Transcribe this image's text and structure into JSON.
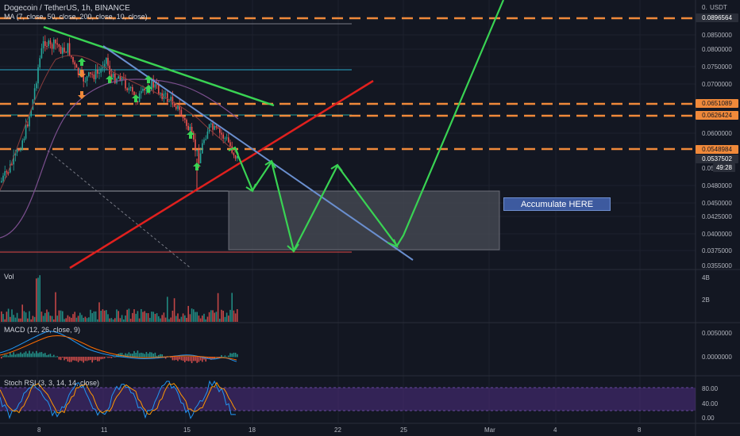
{
  "header": {
    "symbol": "Dogecoin / TetherUS, 1h, BINANCE",
    "ma_indicator": "MA (7, close, 50, close, 200, close, 10, close)"
  },
  "currency": "USDT",
  "price_axis": {
    "labels": [
      "0.0850000",
      "0.0800000",
      "0.0750000",
      "0.0700000",
      "0.0600000",
      "0.0480000",
      "0.0450000",
      "0.0425000",
      "0.0400000",
      "0.0375000",
      "0.0355000"
    ],
    "partial_labels": [
      "0.",
      "0.05"
    ]
  },
  "price_tags": {
    "top": "0.0896564",
    "level_1": "0.0651089",
    "level_2": "0.0626424",
    "level_3": "0.0548984",
    "last_price": "0.0537502",
    "countdown": "49:28"
  },
  "colors": {
    "background": "#131722",
    "grid": "#1e222d",
    "up": "#26a69a",
    "down": "#ef5350",
    "orange_level": "#f0893a",
    "green_line": "#39d353",
    "red_line": "#e0201e",
    "blue_line": "#6a8fcf",
    "accumulate_box": "#4a4d57",
    "rsi_band": "#4a2b7a"
  },
  "annotation": {
    "text": "Accumulate HERE"
  },
  "volume": {
    "label": "Vol",
    "axis": [
      "4B",
      "2B"
    ]
  },
  "macd": {
    "label": "MACD (12, 26, close, 9)",
    "axis": [
      "0.0050000",
      "0.0000000"
    ]
  },
  "rsi": {
    "label": "Stoch RSI (3, 3, 14, 14, close)",
    "axis": [
      "80.00",
      "40.00",
      "0.00"
    ]
  },
  "time_axis": {
    "labels": [
      "8",
      "11",
      "15",
      "18",
      "22",
      "25",
      "Mar",
      "4",
      "8"
    ]
  },
  "icons": [
    "arrow-up-icon",
    "arrow-down-icon"
  ]
}
